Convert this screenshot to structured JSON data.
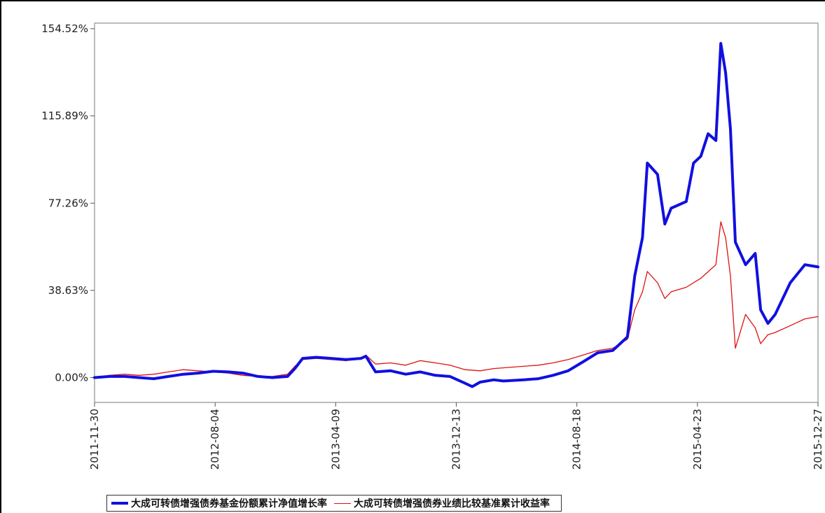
{
  "chart_data": {
    "type": "line",
    "title": "",
    "xlabel": "",
    "ylabel": "",
    "x_tick_labels": [
      "2011-11-30",
      "2012-08-04",
      "2013-04-09",
      "2013-12-13",
      "2014-08-18",
      "2015-04-23",
      "2015-12-27"
    ],
    "y_tick_labels": [
      "154.52%",
      "115.89%",
      "77.26%",
      "38.63%",
      "0.00%"
    ],
    "y_ticks": [
      154.52,
      115.89,
      77.26,
      38.63,
      0.0
    ],
    "xlim": [
      "2011-11-30",
      "2015-12-27"
    ],
    "ylim": [
      -11,
      157
    ],
    "grid": false,
    "legend_position": "bottom",
    "series": [
      {
        "name": "大成可转债增强债券基金份额累计净值增长率",
        "color": "#1010e0",
        "points": [
          [
            "2011-11-30",
            0.0
          ],
          [
            "2011-12-31",
            0.5
          ],
          [
            "2012-01-31",
            0.5
          ],
          [
            "2012-02-29",
            0.0
          ],
          [
            "2012-03-31",
            -0.5
          ],
          [
            "2012-04-30",
            0.5
          ],
          [
            "2012-05-31",
            1.5
          ],
          [
            "2012-06-30",
            2.0
          ],
          [
            "2012-07-31",
            2.8
          ],
          [
            "2012-08-31",
            2.5
          ],
          [
            "2012-09-30",
            2.0
          ],
          [
            "2012-10-31",
            0.5
          ],
          [
            "2012-11-30",
            0.0
          ],
          [
            "2012-12-31",
            0.5
          ],
          [
            "2013-01-15",
            4.0
          ],
          [
            "2013-01-31",
            8.5
          ],
          [
            "2013-02-28",
            9.0
          ],
          [
            "2013-03-31",
            8.5
          ],
          [
            "2013-04-30",
            8.0
          ],
          [
            "2013-05-31",
            8.5
          ],
          [
            "2013-06-10",
            9.5
          ],
          [
            "2013-06-30",
            2.5
          ],
          [
            "2013-07-31",
            3.0
          ],
          [
            "2013-08-31",
            1.5
          ],
          [
            "2013-09-30",
            2.5
          ],
          [
            "2013-10-31",
            1.0
          ],
          [
            "2013-11-30",
            0.5
          ],
          [
            "2013-12-31",
            -2.5
          ],
          [
            "2014-01-15",
            -4.0
          ],
          [
            "2014-01-31",
            -2.0
          ],
          [
            "2014-02-28",
            -1.0
          ],
          [
            "2014-03-20",
            -1.5
          ],
          [
            "2014-04-30",
            -1.0
          ],
          [
            "2014-05-31",
            -0.5
          ],
          [
            "2014-06-30",
            1.0
          ],
          [
            "2014-07-31",
            3.0
          ],
          [
            "2014-08-31",
            7.0
          ],
          [
            "2014-09-30",
            11.0
          ],
          [
            "2014-10-31",
            12.0
          ],
          [
            "2014-11-30",
            18.0
          ],
          [
            "2014-12-15",
            45.0
          ],
          [
            "2014-12-31",
            62.0
          ],
          [
            "2015-01-10",
            95.0
          ],
          [
            "2015-01-31",
            90.0
          ],
          [
            "2015-02-15",
            68.0
          ],
          [
            "2015-02-28",
            75.0
          ],
          [
            "2015-03-31",
            78.0
          ],
          [
            "2015-04-15",
            95.0
          ],
          [
            "2015-04-30",
            98.0
          ],
          [
            "2015-05-15",
            108.0
          ],
          [
            "2015-05-31",
            105.0
          ],
          [
            "2015-06-10",
            148.0
          ],
          [
            "2015-06-20",
            135.0
          ],
          [
            "2015-06-30",
            110.0
          ],
          [
            "2015-07-10",
            60.0
          ],
          [
            "2015-07-31",
            50.0
          ],
          [
            "2015-08-20",
            55.0
          ],
          [
            "2015-08-31",
            30.0
          ],
          [
            "2015-09-15",
            24.0
          ],
          [
            "2015-09-30",
            28.0
          ],
          [
            "2015-10-31",
            42.0
          ],
          [
            "2015-11-30",
            50.0
          ],
          [
            "2015-12-27",
            49.0
          ]
        ]
      },
      {
        "name": "大成可转债增强债券业绩比较基准累计收益率",
        "color": "#e01010",
        "points": [
          [
            "2011-11-30",
            0.0
          ],
          [
            "2011-12-31",
            1.0
          ],
          [
            "2012-01-31",
            1.5
          ],
          [
            "2012-02-29",
            1.0
          ],
          [
            "2012-03-31",
            1.5
          ],
          [
            "2012-04-30",
            2.5
          ],
          [
            "2012-05-31",
            3.5
          ],
          [
            "2012-06-30",
            3.0
          ],
          [
            "2012-07-31",
            2.5
          ],
          [
            "2012-08-31",
            2.0
          ],
          [
            "2012-09-30",
            1.0
          ],
          [
            "2012-10-31",
            0.5
          ],
          [
            "2012-11-30",
            0.5
          ],
          [
            "2012-12-31",
            1.5
          ],
          [
            "2013-01-15",
            5.0
          ],
          [
            "2013-01-31",
            8.0
          ],
          [
            "2013-02-28",
            8.5
          ],
          [
            "2013-03-31",
            8.0
          ],
          [
            "2013-04-30",
            7.5
          ],
          [
            "2013-05-31",
            8.5
          ],
          [
            "2013-06-10",
            10.0
          ],
          [
            "2013-06-30",
            6.0
          ],
          [
            "2013-07-31",
            6.5
          ],
          [
            "2013-08-31",
            5.5
          ],
          [
            "2013-09-30",
            7.5
          ],
          [
            "2013-10-31",
            6.5
          ],
          [
            "2013-11-30",
            5.5
          ],
          [
            "2013-12-31",
            3.5
          ],
          [
            "2014-01-31",
            3.0
          ],
          [
            "2014-02-28",
            4.0
          ],
          [
            "2014-03-31",
            4.5
          ],
          [
            "2014-04-30",
            5.0
          ],
          [
            "2014-05-31",
            5.5
          ],
          [
            "2014-06-30",
            6.5
          ],
          [
            "2014-07-31",
            8.0
          ],
          [
            "2014-08-31",
            10.0
          ],
          [
            "2014-09-30",
            12.0
          ],
          [
            "2014-10-31",
            13.0
          ],
          [
            "2014-11-30",
            17.0
          ],
          [
            "2014-12-15",
            30.0
          ],
          [
            "2014-12-31",
            38.0
          ],
          [
            "2015-01-10",
            47.0
          ],
          [
            "2015-01-31",
            42.0
          ],
          [
            "2015-02-15",
            35.0
          ],
          [
            "2015-02-28",
            38.0
          ],
          [
            "2015-03-31",
            40.0
          ],
          [
            "2015-04-30",
            44.0
          ],
          [
            "2015-05-31",
            50.0
          ],
          [
            "2015-06-10",
            69.0
          ],
          [
            "2015-06-20",
            62.0
          ],
          [
            "2015-06-30",
            45.0
          ],
          [
            "2015-07-10",
            13.0
          ],
          [
            "2015-07-31",
            28.0
          ],
          [
            "2015-08-20",
            22.0
          ],
          [
            "2015-08-31",
            15.0
          ],
          [
            "2015-09-15",
            19.0
          ],
          [
            "2015-09-30",
            20.0
          ],
          [
            "2015-10-31",
            23.0
          ],
          [
            "2015-11-30",
            26.0
          ],
          [
            "2015-12-27",
            27.0
          ]
        ]
      }
    ]
  }
}
